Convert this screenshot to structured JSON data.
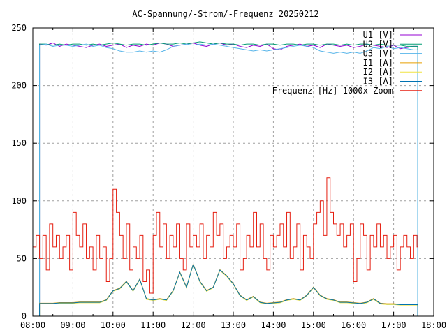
{
  "chart_data": {
    "type": "line",
    "title": "AC-Spannung/-Strom/-Frequenz 20250212",
    "xlabel": "",
    "ylabel": "",
    "xlim": [
      8,
      18
    ],
    "ylim": [
      0,
      250
    ],
    "grid": true,
    "legend_position": "top-right",
    "x_tick_labels": [
      "08:00",
      "09:00",
      "10:00",
      "11:00",
      "12:00",
      "13:00",
      "14:00",
      "15:00",
      "16:00",
      "17:00",
      "18:00"
    ],
    "y_tick_labels": [
      "0",
      "50",
      "100",
      "150",
      "200",
      "250"
    ],
    "x_ticks": [
      8,
      9,
      10,
      11,
      12,
      13,
      14,
      15,
      16,
      17,
      18
    ],
    "y_ticks": [
      0,
      50,
      100,
      150,
      200,
      250
    ],
    "sample_start_hour": 8.1667,
    "sample_step_minutes": 10,
    "data_end_hour": 17.6,
    "series": [
      {
        "name": "U1 [V]",
        "color": "#9400d3",
        "values": [
          236,
          235,
          237,
          234,
          236,
          235,
          234,
          233,
          235,
          236,
          234,
          235,
          236,
          233,
          235,
          234,
          236,
          235,
          237,
          236,
          234,
          235,
          236,
          237,
          235,
          234,
          236,
          237,
          235,
          236,
          234,
          233,
          235,
          234,
          236,
          232,
          231,
          234,
          235,
          236,
          234,
          235,
          233,
          236,
          235,
          234,
          235,
          233,
          234,
          236,
          235,
          234,
          233,
          235,
          232,
          233,
          234
        ]
      },
      {
        "name": "U2 [V]",
        "color": "#009e73",
        "values": [
          236,
          236,
          235,
          236,
          235,
          236,
          236,
          235,
          236,
          235,
          236,
          237,
          236,
          235,
          236,
          236,
          235,
          236,
          237,
          236,
          236,
          237,
          236,
          237,
          238,
          237,
          236,
          237,
          236,
          236,
          235,
          236,
          236,
          235,
          236,
          236,
          235,
          236,
          236,
          235,
          236,
          236,
          235,
          236,
          236,
          235,
          236,
          235,
          236,
          236,
          235,
          236,
          235,
          235,
          235,
          234,
          234
        ]
      },
      {
        "name": "U3 [V]",
        "color": "#56b4e9",
        "values": [
          235,
          236,
          234,
          235,
          235,
          234,
          235,
          236,
          234,
          235,
          233,
          232,
          230,
          229,
          229,
          230,
          229,
          230,
          229,
          231,
          234,
          235,
          236,
          235,
          236,
          235,
          236,
          235,
          234,
          233,
          232,
          231,
          230,
          231,
          230,
          231,
          232,
          233,
          234,
          235,
          234,
          233,
          230,
          229,
          228,
          229,
          228,
          229,
          228,
          230,
          233,
          232,
          234,
          232,
          233,
          232,
          231
        ]
      },
      {
        "name": "I1 [A]",
        "color": "#e69f00",
        "values": [
          11.3,
          11.3,
          11.3,
          11.8,
          11.8,
          11.8,
          12.3,
          12.3,
          12.3,
          12.3,
          14.3,
          22.3,
          24.3,
          30.3,
          22.3,
          32.3,
          15.3,
          14.3,
          15.3,
          14.3,
          22.3,
          38.3,
          25.3,
          45.3,
          30.3,
          22.3,
          25.3,
          40.3,
          35.3,
          28.3,
          18.3,
          14.3,
          17.3,
          12.3,
          11.3,
          11.8,
          12.3,
          14.3,
          15.3,
          14.3,
          18.3,
          25.3,
          18.3,
          15.3,
          14.3,
          12.3,
          12.3,
          11.8,
          11.3,
          12.3,
          15.3,
          11.3,
          10.8,
          10.8,
          10.3,
          10.3,
          10.3
        ]
      },
      {
        "name": "I2 [A]",
        "color": "#f0e442",
        "values": [
          10.6,
          10.6,
          10.6,
          11.1,
          11.1,
          11.1,
          11.6,
          11.6,
          11.6,
          11.6,
          13.6,
          21.6,
          23.6,
          29.6,
          21.6,
          31.6,
          14.6,
          13.6,
          14.6,
          13.6,
          21.6,
          37.6,
          24.6,
          44.6,
          29.6,
          21.6,
          24.6,
          39.6,
          34.6,
          27.6,
          17.6,
          13.6,
          16.6,
          11.6,
          10.6,
          11.1,
          11.6,
          13.6,
          14.6,
          13.6,
          17.6,
          24.6,
          17.6,
          14.6,
          13.6,
          11.6,
          11.6,
          11.1,
          10.6,
          11.6,
          14.6,
          10.6,
          10.1,
          10.1,
          9.6,
          9.6,
          9.6
        ]
      },
      {
        "name": "I3 [A]",
        "color": "#0072b2",
        "values": [
          11,
          11,
          11,
          11.5,
          11.5,
          11.5,
          12,
          12,
          12,
          12,
          14,
          22,
          24,
          30,
          22,
          32,
          15,
          14,
          15,
          14,
          22,
          38,
          25,
          45,
          30,
          22,
          25,
          40,
          35,
          28,
          18,
          14,
          17,
          12,
          11,
          11.5,
          12,
          14,
          15,
          14,
          18,
          25,
          18,
          15,
          14,
          12,
          12,
          11.5,
          11,
          12,
          15,
          11,
          10.5,
          10.5,
          10,
          10,
          10
        ]
      },
      {
        "name": "Frequenz [Hz] 1000x Zoom",
        "color": "#e51e10",
        "step": true,
        "start_hour": 8.0,
        "step_minutes": 5,
        "values": [
          60,
          70,
          50,
          70,
          40,
          80,
          60,
          70,
          50,
          60,
          70,
          40,
          90,
          70,
          60,
          80,
          50,
          60,
          40,
          70,
          50,
          60,
          30,
          50,
          110,
          90,
          70,
          50,
          80,
          40,
          60,
          50,
          70,
          30,
          40,
          20,
          70,
          90,
          60,
          80,
          50,
          70,
          60,
          80,
          50,
          40,
          80,
          60,
          70,
          60,
          80,
          50,
          70,
          60,
          90,
          70,
          80,
          50,
          60,
          70,
          60,
          80,
          40,
          50,
          70,
          60,
          90,
          60,
          80,
          50,
          40,
          70,
          60,
          70,
          80,
          60,
          90,
          50,
          60,
          80,
          40,
          70,
          60,
          50,
          80,
          90,
          100,
          70,
          120,
          90,
          80,
          70,
          80,
          60,
          70,
          80,
          30,
          50,
          80,
          70,
          40,
          70,
          60,
          80,
          60,
          70,
          50,
          60,
          70,
          40,
          60,
          70,
          60,
          50,
          70,
          60
        ]
      }
    ]
  }
}
